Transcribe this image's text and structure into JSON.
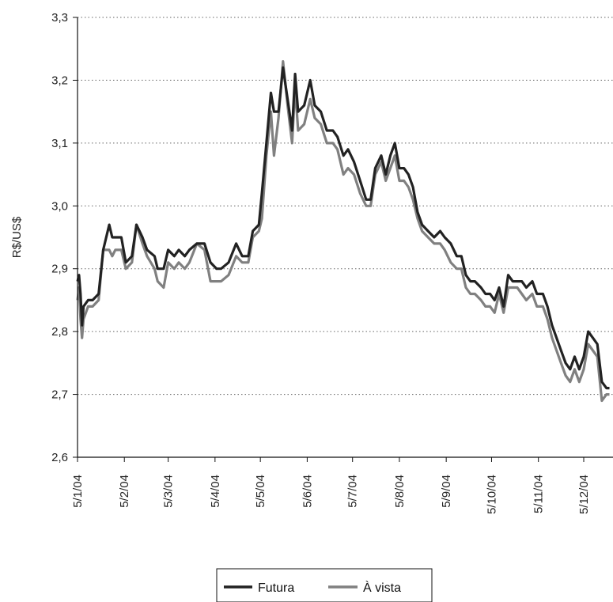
{
  "chart_data": {
    "type": "line",
    "title": "",
    "xlabel": "",
    "ylabel": "R$/US$",
    "ylim": [
      2.6,
      3.3
    ],
    "yticks": [
      "2,6",
      "2,7",
      "2,8",
      "2,9",
      "3,0",
      "3,1",
      "3,2",
      "3,3"
    ],
    "xticks": [
      "5/1/04",
      "5/2/04",
      "5/3/04",
      "5/4/04",
      "5/5/04",
      "5/6/04",
      "5/7/04",
      "5/8/04",
      "5/9/04",
      "5/10/04",
      "5/11/04",
      "5/12/04"
    ],
    "grid": "horizontal dotted",
    "legend_position": "bottom",
    "series": [
      {
        "name": "Futura",
        "color": "#222222",
        "points": [
          [
            "5/1/04",
            2.88
          ],
          [
            "6/1/04",
            2.89
          ],
          [
            "7/1/04",
            2.86
          ],
          [
            "8/1/04",
            2.81
          ],
          [
            "9/1/04",
            2.84
          ],
          [
            "12/1/04",
            2.85
          ],
          [
            "13/1/04",
            2.85
          ],
          [
            "15/1/04",
            2.85
          ],
          [
            "19/1/04",
            2.86
          ],
          [
            "22/1/04",
            2.93
          ],
          [
            "26/1/04",
            2.97
          ],
          [
            "28/1/04",
            2.95
          ],
          [
            "30/1/04",
            2.95
          ],
          [
            "3/2/04",
            2.95
          ],
          [
            "6/2/04",
            2.91
          ],
          [
            "10/2/04",
            2.92
          ],
          [
            "13/2/04",
            2.97
          ],
          [
            "17/2/04",
            2.95
          ],
          [
            "20/2/04",
            2.93
          ],
          [
            "25/2/04",
            2.92
          ],
          [
            "27/2/04",
            2.9
          ],
          [
            "2/3/04",
            2.9
          ],
          [
            "5/3/04",
            2.93
          ],
          [
            "9/3/04",
            2.92
          ],
          [
            "12/3/04",
            2.93
          ],
          [
            "16/3/04",
            2.92
          ],
          [
            "19/3/04",
            2.93
          ],
          [
            "24/3/04",
            2.94
          ],
          [
            "29/3/04",
            2.94
          ],
          [
            "2/4/04",
            2.91
          ],
          [
            "6/4/04",
            2.9
          ],
          [
            "9/4/04",
            2.9
          ],
          [
            "14/4/04",
            2.91
          ],
          [
            "19/4/04",
            2.94
          ],
          [
            "23/4/04",
            2.92
          ],
          [
            "27/4/04",
            2.92
          ],
          [
            "30/4/04",
            2.96
          ],
          [
            "4/5/04",
            2.97
          ],
          [
            "6/5/04",
            3.02
          ],
          [
            "9/5/04",
            3.1
          ],
          [
            "12/5/04",
            3.18
          ],
          [
            "14/5/04",
            3.15
          ],
          [
            "17/5/04",
            3.15
          ],
          [
            "20/5/04",
            3.22
          ],
          [
            "23/5/04",
            3.17
          ],
          [
            "26/5/04",
            3.12
          ],
          [
            "28/5/04",
            3.21
          ],
          [
            "30/5/04",
            3.15
          ],
          [
            "3/6/04",
            3.16
          ],
          [
            "7/6/04",
            3.2
          ],
          [
            "10/6/04",
            3.16
          ],
          [
            "14/6/04",
            3.15
          ],
          [
            "18/6/04",
            3.12
          ],
          [
            "22/6/04",
            3.12
          ],
          [
            "25/6/04",
            3.11
          ],
          [
            "29/6/04",
            3.08
          ],
          [
            "2/7/04",
            3.09
          ],
          [
            "6/7/04",
            3.07
          ],
          [
            "10/7/04",
            3.04
          ],
          [
            "14/7/04",
            3.01
          ],
          [
            "17/7/04",
            3.01
          ],
          [
            "20/7/04",
            3.06
          ],
          [
            "24/7/04",
            3.08
          ],
          [
            "27/7/04",
            3.05
          ],
          [
            "30/7/04",
            3.08
          ],
          [
            "2/8/04",
            3.1
          ],
          [
            "5/8/04",
            3.06
          ],
          [
            "8/8/04",
            3.06
          ],
          [
            "11/8/04",
            3.05
          ],
          [
            "14/8/04",
            3.03
          ],
          [
            "17/8/04",
            2.99
          ],
          [
            "20/8/04",
            2.97
          ],
          [
            "24/8/04",
            2.96
          ],
          [
            "28/8/04",
            2.95
          ],
          [
            "1/9/04",
            2.96
          ],
          [
            "4/9/04",
            2.95
          ],
          [
            "8/9/04",
            2.94
          ],
          [
            "12/9/04",
            2.92
          ],
          [
            "15/9/04",
            2.92
          ],
          [
            "18/9/04",
            2.89
          ],
          [
            "21/9/04",
            2.88
          ],
          [
            "24/9/04",
            2.88
          ],
          [
            "28/9/04",
            2.87
          ],
          [
            "1/10/04",
            2.86
          ],
          [
            "4/10/04",
            2.86
          ],
          [
            "7/10/04",
            2.85
          ],
          [
            "10/10/04",
            2.87
          ],
          [
            "13/10/04",
            2.84
          ],
          [
            "16/10/04",
            2.89
          ],
          [
            "19/10/04",
            2.88
          ],
          [
            "22/10/04",
            2.88
          ],
          [
            "25/10/04",
            2.88
          ],
          [
            "28/10/04",
            2.87
          ],
          [
            "1/11/04",
            2.88
          ],
          [
            "4/11/04",
            2.86
          ],
          [
            "8/11/04",
            2.86
          ],
          [
            "11/11/04",
            2.84
          ],
          [
            "14/11/04",
            2.81
          ],
          [
            "17/11/04",
            2.79
          ],
          [
            "20/11/04",
            2.77
          ],
          [
            "23/11/04",
            2.75
          ],
          [
            "26/11/04",
            2.74
          ],
          [
            "29/11/04",
            2.76
          ],
          [
            "2/12/04",
            2.74
          ],
          [
            "5/12/04",
            2.76
          ],
          [
            "8/12/04",
            2.8
          ],
          [
            "11/12/04",
            2.79
          ],
          [
            "14/12/04",
            2.78
          ],
          [
            "17/12/04",
            2.72
          ],
          [
            "20/12/04",
            2.71
          ],
          [
            "22/12/04",
            2.71
          ]
        ]
      },
      {
        "name": "À vista",
        "color": "#808080",
        "points": [
          [
            "5/1/04",
            2.85
          ],
          [
            "6/1/04",
            2.87
          ],
          [
            "7/1/04",
            2.82
          ],
          [
            "8/1/04",
            2.79
          ],
          [
            "9/1/04",
            2.82
          ],
          [
            "12/1/04",
            2.84
          ],
          [
            "13/1/04",
            2.84
          ],
          [
            "15/1/04",
            2.84
          ],
          [
            "19/1/04",
            2.85
          ],
          [
            "22/1/04",
            2.93
          ],
          [
            "26/1/04",
            2.93
          ],
          [
            "28/1/04",
            2.92
          ],
          [
            "30/1/04",
            2.93
          ],
          [
            "3/2/04",
            2.93
          ],
          [
            "6/2/04",
            2.9
          ],
          [
            "10/2/04",
            2.91
          ],
          [
            "13/2/04",
            2.97
          ],
          [
            "17/2/04",
            2.94
          ],
          [
            "20/2/04",
            2.92
          ],
          [
            "25/2/04",
            2.9
          ],
          [
            "27/2/04",
            2.88
          ],
          [
            "2/3/04",
            2.87
          ],
          [
            "5/3/04",
            2.91
          ],
          [
            "9/3/04",
            2.9
          ],
          [
            "12/3/04",
            2.91
          ],
          [
            "16/3/04",
            2.9
          ],
          [
            "19/3/04",
            2.91
          ],
          [
            "24/3/04",
            2.94
          ],
          [
            "29/3/04",
            2.93
          ],
          [
            "2/4/04",
            2.88
          ],
          [
            "6/4/04",
            2.88
          ],
          [
            "9/4/04",
            2.88
          ],
          [
            "14/4/04",
            2.89
          ],
          [
            "19/4/04",
            2.92
          ],
          [
            "23/4/04",
            2.91
          ],
          [
            "27/4/04",
            2.91
          ],
          [
            "30/4/04",
            2.95
          ],
          [
            "4/5/04",
            2.96
          ],
          [
            "6/5/04",
            2.98
          ],
          [
            "9/5/04",
            3.08
          ],
          [
            "12/5/04",
            3.15
          ],
          [
            "14/5/04",
            3.08
          ],
          [
            "17/5/04",
            3.14
          ],
          [
            "20/5/04",
            3.23
          ],
          [
            "23/5/04",
            3.16
          ],
          [
            "26/5/04",
            3.1
          ],
          [
            "28/5/04",
            3.19
          ],
          [
            "30/5/04",
            3.12
          ],
          [
            "3/6/04",
            3.13
          ],
          [
            "7/6/04",
            3.17
          ],
          [
            "10/6/04",
            3.14
          ],
          [
            "14/6/04",
            3.13
          ],
          [
            "18/6/04",
            3.1
          ],
          [
            "22/6/04",
            3.1
          ],
          [
            "25/6/04",
            3.09
          ],
          [
            "29/6/04",
            3.05
          ],
          [
            "2/7/04",
            3.06
          ],
          [
            "6/7/04",
            3.05
          ],
          [
            "10/7/04",
            3.02
          ],
          [
            "14/7/04",
            3.0
          ],
          [
            "17/7/04",
            3.0
          ],
          [
            "20/7/04",
            3.05
          ],
          [
            "24/7/04",
            3.07
          ],
          [
            "27/7/04",
            3.04
          ],
          [
            "30/7/04",
            3.06
          ],
          [
            "2/8/04",
            3.08
          ],
          [
            "5/8/04",
            3.04
          ],
          [
            "8/8/04",
            3.04
          ],
          [
            "11/8/04",
            3.03
          ],
          [
            "14/8/04",
            3.01
          ],
          [
            "17/8/04",
            2.98
          ],
          [
            "20/8/04",
            2.96
          ],
          [
            "24/8/04",
            2.95
          ],
          [
            "28/8/04",
            2.94
          ],
          [
            "1/9/04",
            2.94
          ],
          [
            "4/9/04",
            2.93
          ],
          [
            "8/9/04",
            2.91
          ],
          [
            "12/9/04",
            2.9
          ],
          [
            "15/9/04",
            2.9
          ],
          [
            "18/9/04",
            2.87
          ],
          [
            "21/9/04",
            2.86
          ],
          [
            "24/9/04",
            2.86
          ],
          [
            "28/9/04",
            2.85
          ],
          [
            "1/10/04",
            2.84
          ],
          [
            "4/10/04",
            2.84
          ],
          [
            "7/10/04",
            2.83
          ],
          [
            "10/10/04",
            2.86
          ],
          [
            "13/10/04",
            2.83
          ],
          [
            "16/10/04",
            2.87
          ],
          [
            "19/10/04",
            2.87
          ],
          [
            "22/10/04",
            2.87
          ],
          [
            "25/10/04",
            2.86
          ],
          [
            "28/10/04",
            2.85
          ],
          [
            "1/11/04",
            2.86
          ],
          [
            "4/11/04",
            2.84
          ],
          [
            "8/11/04",
            2.84
          ],
          [
            "11/11/04",
            2.82
          ],
          [
            "14/11/04",
            2.79
          ],
          [
            "17/11/04",
            2.77
          ],
          [
            "20/11/04",
            2.75
          ],
          [
            "23/11/04",
            2.73
          ],
          [
            "26/11/04",
            2.72
          ],
          [
            "29/11/04",
            2.74
          ],
          [
            "2/12/04",
            2.72
          ],
          [
            "5/12/04",
            2.74
          ],
          [
            "8/12/04",
            2.78
          ],
          [
            "11/12/04",
            2.77
          ],
          [
            "14/12/04",
            2.76
          ],
          [
            "17/12/04",
            2.69
          ],
          [
            "20/12/04",
            2.7
          ],
          [
            "22/12/04",
            2.7
          ]
        ]
      }
    ]
  }
}
